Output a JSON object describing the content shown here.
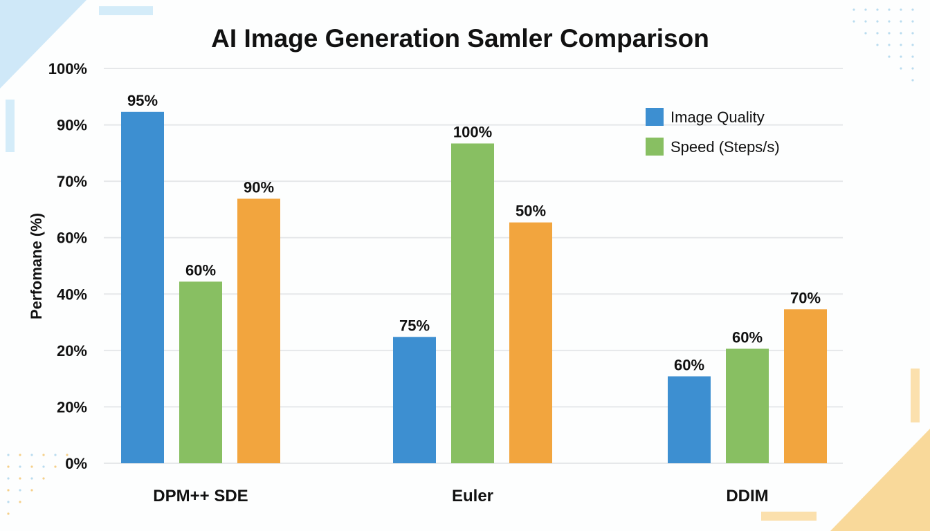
{
  "chart_data": {
    "type": "bar",
    "title": "AI Image Generation Samler Comparison",
    "xlabel": "",
    "ylabel": "Perfomane (%)",
    "y_tick_labels": [
      "0%",
      "20%",
      "20%",
      "40%",
      "60%",
      "70%",
      "90%",
      "100%"
    ],
    "categories": [
      "DPM++ SDE",
      "Euler",
      "DDIM"
    ],
    "series": [
      {
        "name": "Image Quality",
        "color": "#3d8fd1",
        "data_labels": [
          "95%",
          "75%",
          "60%"
        ],
        "levels_percent_of_axis": [
          89,
          32,
          22
        ]
      },
      {
        "name": "Speed (Steps/s)",
        "color": "#88bf62",
        "data_labels": [
          "60%",
          "100%",
          "60%"
        ],
        "levels_percent_of_axis": [
          46,
          81,
          29
        ]
      },
      {
        "color": "#f2a53e",
        "data_labels": [
          "90%",
          "50%",
          "70%"
        ],
        "levels_percent_of_axis": [
          67,
          61,
          39
        ]
      }
    ],
    "grid": true,
    "legend_placement": "top-right"
  }
}
